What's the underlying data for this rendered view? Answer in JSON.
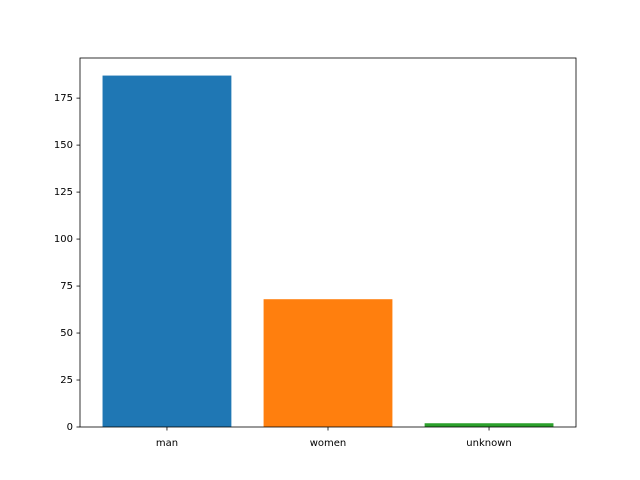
{
  "chart_data": {
    "type": "bar",
    "categories": [
      "man",
      "women",
      "unknown"
    ],
    "values": [
      187,
      68,
      2
    ],
    "colors": [
      "#1f77b4",
      "#ff7f0e",
      "#2ca02c"
    ],
    "ylim": [
      0,
      196.35
    ],
    "yticks": [
      0,
      25,
      50,
      75,
      100,
      125,
      150,
      175
    ]
  }
}
